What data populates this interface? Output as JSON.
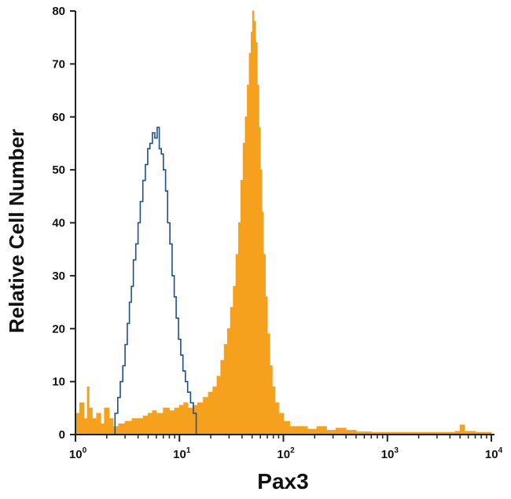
{
  "chart_data": {
    "type": "histogram",
    "title": "",
    "xlabel": "Pax3",
    "ylabel": "Relative Cell Number",
    "x_scale": "log",
    "xlim": [
      1,
      10000
    ],
    "ylim": [
      0,
      80
    ],
    "x_ticks": [
      {
        "value": 1,
        "base": "10",
        "exp": "0"
      },
      {
        "value": 10,
        "base": "10",
        "exp": "1"
      },
      {
        "value": 100,
        "base": "10",
        "exp": "2"
      },
      {
        "value": 1000,
        "base": "10",
        "exp": "3"
      },
      {
        "value": 10000,
        "base": "10",
        "exp": "4"
      }
    ],
    "y_ticks": [
      "0",
      "10",
      "20",
      "30",
      "40",
      "50",
      "60",
      "70",
      "80"
    ],
    "grid": false,
    "series": [
      {
        "style": "filled",
        "color": "#f5a11e",
        "points": [
          [
            1.0,
            4
          ],
          [
            1.1,
            6
          ],
          [
            1.2,
            3
          ],
          [
            1.3,
            9
          ],
          [
            1.35,
            5
          ],
          [
            1.45,
            3
          ],
          [
            1.6,
            4
          ],
          [
            1.75,
            2
          ],
          [
            1.9,
            5
          ],
          [
            2.1,
            3
          ],
          [
            2.3,
            1.5
          ],
          [
            2.6,
            2
          ],
          [
            3.0,
            2.5
          ],
          [
            3.5,
            3
          ],
          [
            4.0,
            3
          ],
          [
            4.5,
            3.5
          ],
          [
            5.0,
            4
          ],
          [
            5.5,
            4.5
          ],
          [
            6.0,
            4
          ],
          [
            7.0,
            5
          ],
          [
            8.0,
            4.5
          ],
          [
            9.0,
            5
          ],
          [
            10.0,
            5.5
          ],
          [
            11.0,
            6
          ],
          [
            12.0,
            5
          ],
          [
            13.5,
            5.5
          ],
          [
            15.0,
            6
          ],
          [
            17.0,
            7
          ],
          [
            19.0,
            8
          ],
          [
            21.0,
            9
          ],
          [
            23.0,
            11
          ],
          [
            25.0,
            14
          ],
          [
            27.0,
            17
          ],
          [
            29.0,
            20
          ],
          [
            31.0,
            24
          ],
          [
            33.0,
            28
          ],
          [
            35.0,
            34
          ],
          [
            37.0,
            40
          ],
          [
            39.0,
            48
          ],
          [
            41.0,
            55
          ],
          [
            43.0,
            60
          ],
          [
            45.0,
            66
          ],
          [
            47.0,
            72
          ],
          [
            49.0,
            76
          ],
          [
            50.5,
            80
          ],
          [
            52.0,
            78
          ],
          [
            54.0,
            74
          ],
          [
            56.0,
            66
          ],
          [
            58.0,
            58
          ],
          [
            60.0,
            50
          ],
          [
            62.0,
            42
          ],
          [
            64.0,
            34
          ],
          [
            67.0,
            26
          ],
          [
            70.0,
            19
          ],
          [
            74.0,
            13
          ],
          [
            78.0,
            9
          ],
          [
            83.0,
            6
          ],
          [
            90.0,
            4
          ],
          [
            100.0,
            2.5
          ],
          [
            115.0,
            1.5
          ],
          [
            140.0,
            1.5
          ],
          [
            170.0,
            1
          ],
          [
            210.0,
            1.5
          ],
          [
            260.0,
            0.8
          ],
          [
            320.0,
            1.2
          ],
          [
            400.0,
            0.8
          ],
          [
            500.0,
            0.5
          ],
          [
            700.0,
            0.4
          ],
          [
            1000.0,
            0.4
          ],
          [
            1500.0,
            0.4
          ],
          [
            2000.0,
            0.4
          ],
          [
            3000.0,
            0.4
          ],
          [
            4500.0,
            0.6
          ],
          [
            5000.0,
            1.8
          ],
          [
            5500.0,
            0.6
          ],
          [
            7000.0,
            0.4
          ],
          [
            10000.0,
            0.4
          ]
        ]
      },
      {
        "style": "outline",
        "color": "#1f4e8c",
        "points": [
          [
            2.4,
            4
          ],
          [
            2.55,
            7
          ],
          [
            2.7,
            10
          ],
          [
            2.85,
            13
          ],
          [
            3.0,
            17
          ],
          [
            3.15,
            21
          ],
          [
            3.3,
            25
          ],
          [
            3.45,
            28
          ],
          [
            3.6,
            33
          ],
          [
            3.8,
            36
          ],
          [
            4.0,
            40
          ],
          [
            4.2,
            44
          ],
          [
            4.45,
            48
          ],
          [
            4.7,
            51
          ],
          [
            4.95,
            54
          ],
          [
            5.2,
            55
          ],
          [
            5.5,
            57
          ],
          [
            5.8,
            56
          ],
          [
            6.1,
            58
          ],
          [
            6.4,
            54
          ],
          [
            6.7,
            53
          ],
          [
            7.0,
            50
          ],
          [
            7.35,
            46
          ],
          [
            7.7,
            40
          ],
          [
            8.1,
            36
          ],
          [
            8.5,
            30
          ],
          [
            8.9,
            26
          ],
          [
            9.3,
            22
          ],
          [
            9.8,
            18
          ],
          [
            10.3,
            15
          ],
          [
            10.8,
            12
          ],
          [
            11.4,
            10
          ],
          [
            12.0,
            8
          ],
          [
            12.8,
            6
          ],
          [
            13.6,
            4
          ],
          [
            14.5,
            2
          ]
        ]
      }
    ]
  }
}
